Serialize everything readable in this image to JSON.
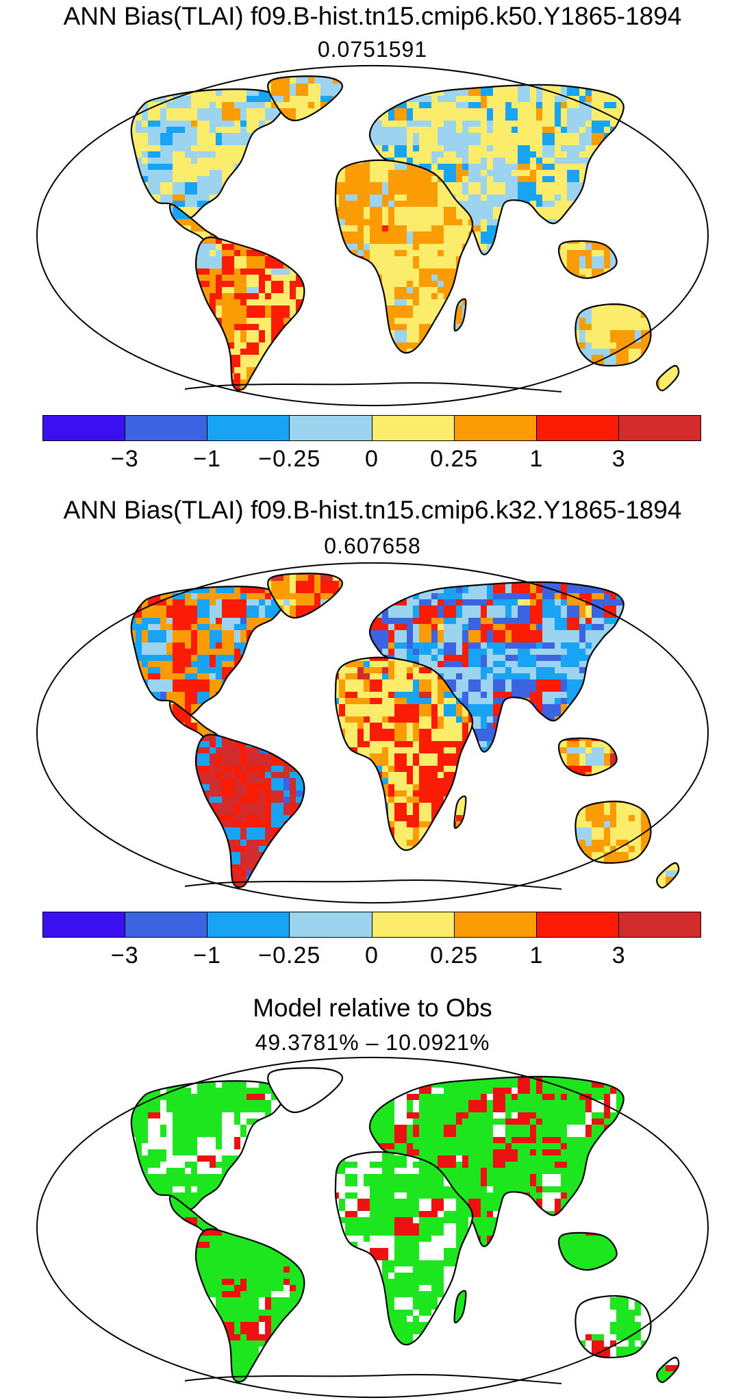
{
  "panels": [
    {
      "title": "ANN Bias(TLAI) f09.B-hist.tn15.cmip6.k50.Y1865-1894",
      "subtitle": "0.0751591",
      "map_style": "bias_low"
    },
    {
      "title": "ANN Bias(TLAI) f09.B-hist.tn15.cmip6.k32.Y1865-1894",
      "subtitle": "0.607658",
      "map_style": "bias_high"
    },
    {
      "title": "Model relative to Obs",
      "subtitle": "49.3781% – 10.0921%",
      "map_style": "relative"
    }
  ],
  "colorbar": {
    "colors": [
      "#3a10f0",
      "#3c64e0",
      "#18a4f4",
      "#9cd4f0",
      "#fcec6c",
      "#fc9c04",
      "#fc1c04",
      "#d42c2c"
    ],
    "tick_labels": [
      "−3",
      "−1",
      "−0.25",
      "0",
      "0.25",
      "1",
      "3"
    ]
  },
  "relative_colors": {
    "green": "#1ee61e",
    "red": "#ee1111",
    "white": "#ffffff"
  }
}
